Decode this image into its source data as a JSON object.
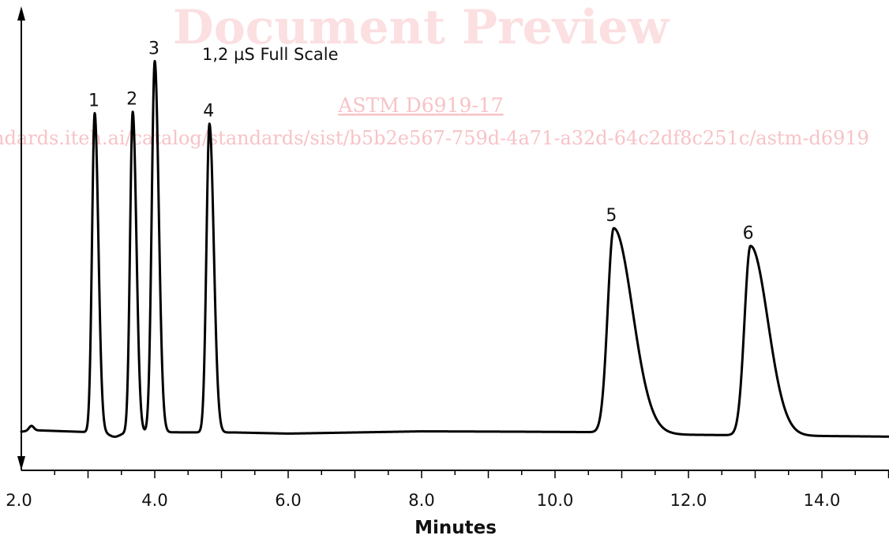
{
  "watermark": {
    "title": "Document Preview",
    "link": "ASTM D6919-17",
    "url": "ndards.iteh.ai/catalog/standards/sist/b5b2e567-759d-4a71-a32d-64c2df8c251c/astm-d6919"
  },
  "chart_data": {
    "type": "line",
    "title": "",
    "annotation": "1,2 µS Full Scale",
    "xlabel": "Minutes",
    "ylabel": "",
    "xlim": [
      2.0,
      15.0
    ],
    "ylim": [
      -0.05,
      1.0
    ],
    "x_ticks": [
      "2.0",
      "4.0",
      "6.0",
      "8.0",
      "10.0",
      "12.0",
      "14.0"
    ],
    "x_tick_values": [
      2,
      4,
      6,
      8,
      10,
      12,
      14
    ],
    "grid": false,
    "legend": "none",
    "line_color": "#000000",
    "baseline": [
      [
        2.0,
        0.002
      ],
      [
        2.18,
        0.006
      ],
      [
        3.0,
        0.001
      ],
      [
        5.2,
        0.0
      ],
      [
        6.0,
        -0.003
      ],
      [
        8.0,
        0.003
      ],
      [
        9.5,
        0.002
      ],
      [
        10.5,
        0.001
      ],
      [
        12.0,
        -0.006
      ],
      [
        15.0,
        -0.011
      ]
    ],
    "peaks": [
      {
        "label": "1",
        "time": 3.1,
        "height": 0.842,
        "width_left": 0.04,
        "width_right": 0.055
      },
      {
        "label": "2",
        "time": 3.67,
        "height": 0.846,
        "width_left": 0.04,
        "width_right": 0.055
      },
      {
        "label": "3",
        "time": 4.0,
        "height": 0.98,
        "width_left": 0.045,
        "width_right": 0.06
      },
      {
        "label": "4",
        "time": 4.82,
        "height": 0.815,
        "width_left": 0.045,
        "width_right": 0.065
      },
      {
        "label": "5",
        "time": 10.88,
        "height": 0.54,
        "width_left": 0.09,
        "width_right": 0.28
      },
      {
        "label": "6",
        "time": 12.93,
        "height": 0.5,
        "width_left": 0.09,
        "width_right": 0.26
      }
    ]
  }
}
